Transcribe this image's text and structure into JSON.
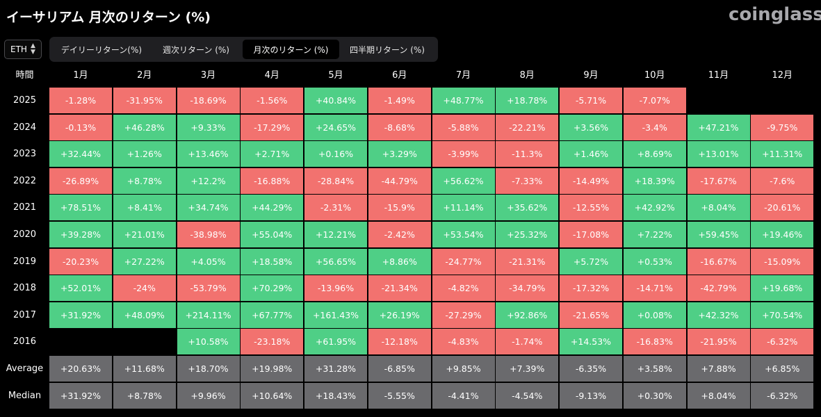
{
  "page": {
    "title": "イーサリアム 月次のリターン (%)",
    "brand": "coinglass"
  },
  "asset_select": {
    "value": "ETH",
    "icon": "updown-chevron-icon"
  },
  "tabs": [
    {
      "label": "デイリーリターン(%)",
      "active": false
    },
    {
      "label": "週次リターン (%)",
      "active": false
    },
    {
      "label": "月次のリターン (%)",
      "active": true
    },
    {
      "label": "四半期リターン (%)",
      "active": false
    }
  ],
  "colors": {
    "positive": "#4fcf86",
    "negative": "#f2726f",
    "summary": "#6a6a6d",
    "background": "#000000"
  },
  "chart_data": {
    "type": "heatmap",
    "corner_label": "時間",
    "columns": [
      "1月",
      "2月",
      "3月",
      "4月",
      "5月",
      "6月",
      "7月",
      "8月",
      "9月",
      "10月",
      "11月",
      "12月"
    ],
    "rows": [
      {
        "label": "2025",
        "values": [
          "-1.28%",
          "-31.95%",
          "-18.69%",
          "-1.56%",
          "+40.84%",
          "-1.49%",
          "+48.77%",
          "+18.78%",
          "-5.71%",
          "-7.07%",
          "",
          ""
        ]
      },
      {
        "label": "2024",
        "values": [
          "-0.13%",
          "+46.28%",
          "+9.33%",
          "-17.29%",
          "+24.65%",
          "-8.68%",
          "-5.88%",
          "-22.21%",
          "+3.56%",
          "-3.4%",
          "+47.21%",
          "-9.75%"
        ]
      },
      {
        "label": "2023",
        "values": [
          "+32.44%",
          "+1.26%",
          "+13.46%",
          "+2.71%",
          "+0.16%",
          "+3.29%",
          "-3.99%",
          "-11.3%",
          "+1.46%",
          "+8.69%",
          "+13.01%",
          "+11.31%"
        ]
      },
      {
        "label": "2022",
        "values": [
          "-26.89%",
          "+8.78%",
          "+12.2%",
          "-16.88%",
          "-28.84%",
          "-44.79%",
          "+56.62%",
          "-7.33%",
          "-14.49%",
          "+18.39%",
          "-17.67%",
          "-7.6%"
        ]
      },
      {
        "label": "2021",
        "values": [
          "+78.51%",
          "+8.41%",
          "+34.74%",
          "+44.29%",
          "-2.31%",
          "-15.9%",
          "+11.14%",
          "+35.62%",
          "-12.55%",
          "+42.92%",
          "+8.04%",
          "-20.61%"
        ]
      },
      {
        "label": "2020",
        "values": [
          "+39.28%",
          "+21.01%",
          "-38.98%",
          "+55.04%",
          "+12.21%",
          "-2.42%",
          "+53.54%",
          "+25.32%",
          "-17.08%",
          "+7.22%",
          "+59.45%",
          "+19.46%"
        ]
      },
      {
        "label": "2019",
        "values": [
          "-20.23%",
          "+27.22%",
          "+4.05%",
          "+18.58%",
          "+56.65%",
          "+8.86%",
          "-24.77%",
          "-21.31%",
          "+5.72%",
          "+0.53%",
          "-16.67%",
          "-15.09%"
        ]
      },
      {
        "label": "2018",
        "values": [
          "+52.01%",
          "-24%",
          "-53.79%",
          "+70.29%",
          "-13.96%",
          "-21.34%",
          "-4.82%",
          "-34.79%",
          "-17.32%",
          "-14.71%",
          "-42.79%",
          "+19.68%"
        ]
      },
      {
        "label": "2017",
        "values": [
          "+31.92%",
          "+48.09%",
          "+214.11%",
          "+67.77%",
          "+161.43%",
          "+26.19%",
          "-27.29%",
          "+92.86%",
          "-21.65%",
          "+0.08%",
          "+42.32%",
          "+70.54%"
        ]
      },
      {
        "label": "2016",
        "values": [
          "",
          "",
          "+10.58%",
          "-23.18%",
          "+61.95%",
          "-12.18%",
          "-4.83%",
          "-1.74%",
          "+14.53%",
          "-16.83%",
          "-21.95%",
          "-6.32%"
        ]
      },
      {
        "label": "Average",
        "summary": true,
        "values": [
          "+20.63%",
          "+11.68%",
          "+18.70%",
          "+19.98%",
          "+31.28%",
          "-6.85%",
          "+9.85%",
          "+7.39%",
          "-6.35%",
          "+3.58%",
          "+7.88%",
          "+6.85%"
        ]
      },
      {
        "label": "Median",
        "summary": true,
        "values": [
          "+31.92%",
          "+8.78%",
          "+9.96%",
          "+10.64%",
          "+18.43%",
          "-5.55%",
          "-4.41%",
          "-4.54%",
          "-9.13%",
          "+0.30%",
          "+8.04%",
          "-6.32%"
        ]
      }
    ]
  }
}
